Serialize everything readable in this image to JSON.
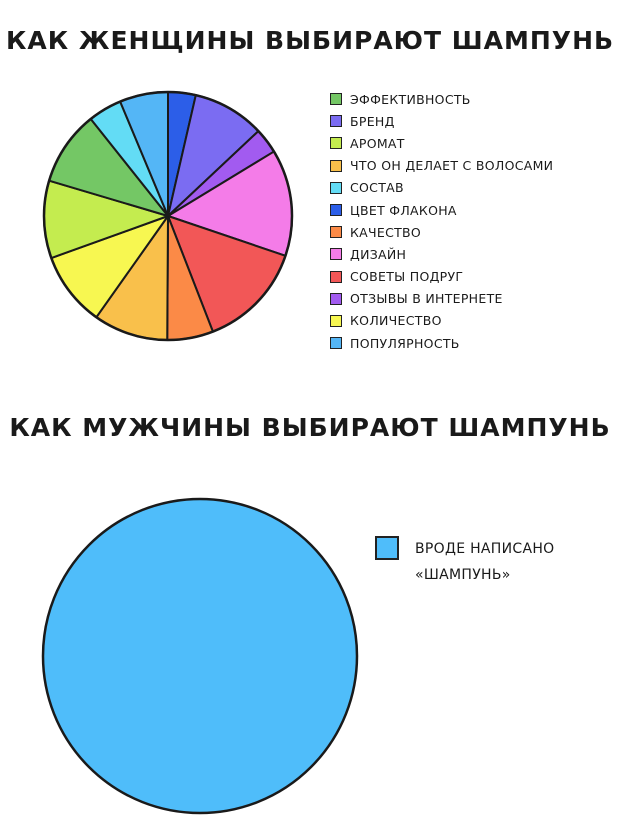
{
  "chart_data": [
    {
      "type": "pie",
      "title": "КАК ЖЕНЩИНЫ ВЫБИРАЮТ ШАМПУНЬ",
      "legend_position": "right",
      "slices": [
        {
          "label": "цвет флакона",
          "value": 3.6,
          "color": "#2c5ee8"
        },
        {
          "label": "бренд",
          "value": 9.4,
          "color": "#7b6cf2"
        },
        {
          "label": "отзывы в интернете",
          "value": 3.3,
          "color": "#a25bf0"
        },
        {
          "label": "дизайн",
          "value": 13.9,
          "color": "#f47ce8"
        },
        {
          "label": "советы подруг",
          "value": 13.9,
          "color": "#f25757"
        },
        {
          "label": "качество",
          "value": 6.0,
          "color": "#fb8a47"
        },
        {
          "label": "что он делает с волосами",
          "value": 9.7,
          "color": "#f9c04b"
        },
        {
          "label": "количество",
          "value": 9.7,
          "color": "#f7f751"
        },
        {
          "label": "аромат",
          "value": 10.1,
          "color": "#c4ec4f"
        },
        {
          "label": "эффективность",
          "value": 9.7,
          "color": "#74c765"
        },
        {
          "label": "состав",
          "value": 4.4,
          "color": "#63dcf5"
        },
        {
          "label": "популярность",
          "value": 6.3,
          "color": "#54b6f6"
        }
      ],
      "legend": [
        {
          "label": "эффективность",
          "color": "#74c765"
        },
        {
          "label": "бренд",
          "color": "#7b6cf2"
        },
        {
          "label": "аромат",
          "color": "#c4ec4f"
        },
        {
          "label": "что он делает с волосами",
          "color": "#f9c04b"
        },
        {
          "label": "состав",
          "color": "#63dcf5"
        },
        {
          "label": "цвет флакона",
          "color": "#2c5ee8"
        },
        {
          "label": "качество",
          "color": "#fb8a47"
        },
        {
          "label": "дизайн",
          "color": "#f47ce8"
        },
        {
          "label": "советы подруг",
          "color": "#f25757"
        },
        {
          "label": "отзывы в интернете",
          "color": "#a25bf0"
        },
        {
          "label": "количество",
          "color": "#f7f751"
        },
        {
          "label": "популярность",
          "color": "#54b6f6"
        }
      ]
    },
    {
      "type": "pie",
      "title": "КАК МУЖЧИНЫ ВЫБИРАЮТ ШАМПУНЬ",
      "legend_position": "right",
      "slices": [
        {
          "label": "ВРОДЕ НАПИСАНО «ШАМПУНЬ»",
          "value": 100,
          "color": "#4fbdfa"
        }
      ],
      "legend": [
        {
          "label": "ВРОДЕ НАПИСАНО «ШАМПУНЬ»",
          "color": "#4fbdfa"
        }
      ]
    }
  ]
}
